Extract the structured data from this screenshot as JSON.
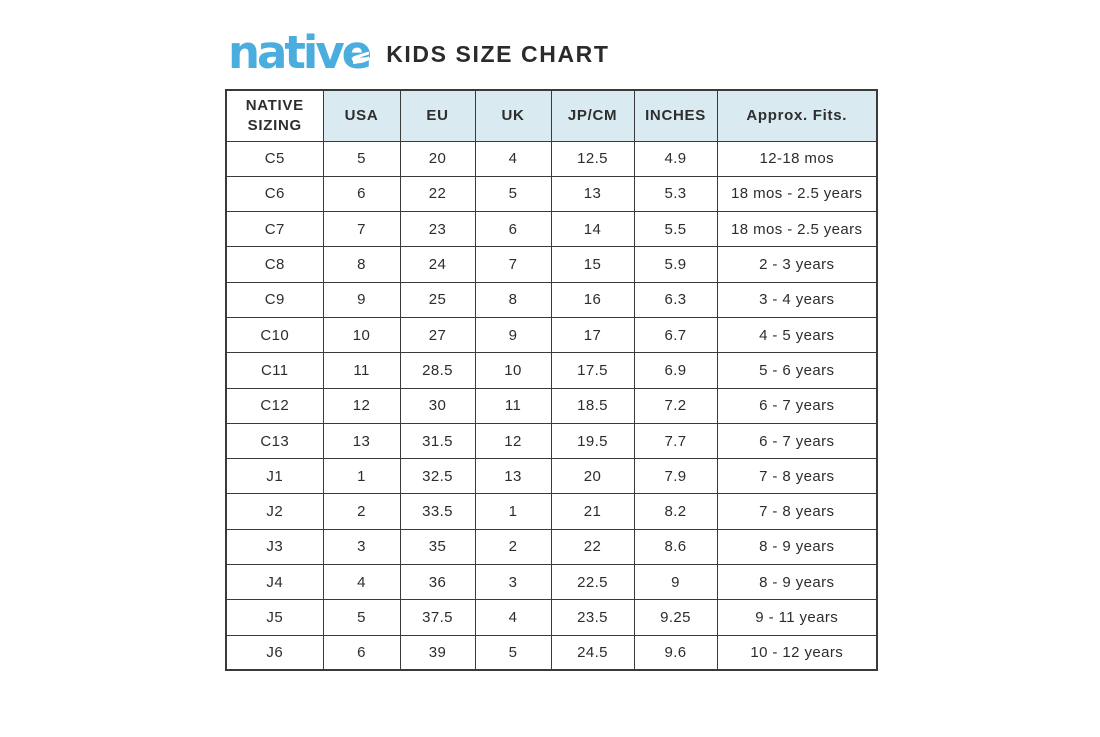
{
  "header": {
    "logo_text": "native",
    "title": "KIDS SIZE CHART"
  },
  "colors": {
    "logo_blue": "#4badde",
    "header_bg": "#d9eaf1",
    "border": "#3a3a3a",
    "text": "#2d2d2d"
  },
  "chart_data": {
    "type": "table",
    "title": "native KIDS SIZE CHART",
    "columns": [
      "NATIVE SIZING",
      "USA",
      "EU",
      "UK",
      "JP/CM",
      "INCHES",
      "Approx. Fits."
    ],
    "rows": [
      [
        "C5",
        "5",
        "20",
        "4",
        "12.5",
        "4.9",
        "12-18 mos"
      ],
      [
        "C6",
        "6",
        "22",
        "5",
        "13",
        "5.3",
        "18 mos - 2.5 years"
      ],
      [
        "C7",
        "7",
        "23",
        "6",
        "14",
        "5.5",
        "18 mos - 2.5 years"
      ],
      [
        "C8",
        "8",
        "24",
        "7",
        "15",
        "5.9",
        "2 - 3 years"
      ],
      [
        "C9",
        "9",
        "25",
        "8",
        "16",
        "6.3",
        "3 - 4 years"
      ],
      [
        "C10",
        "10",
        "27",
        "9",
        "17",
        "6.7",
        "4 - 5 years"
      ],
      [
        "C11",
        "11",
        "28.5",
        "10",
        "17.5",
        "6.9",
        "5 - 6 years"
      ],
      [
        "C12",
        "12",
        "30",
        "11",
        "18.5",
        "7.2",
        "6 - 7 years"
      ],
      [
        "C13",
        "13",
        "31.5",
        "12",
        "19.5",
        "7.7",
        "6 - 7 years"
      ],
      [
        "J1",
        "1",
        "32.5",
        "13",
        "20",
        "7.9",
        "7 - 8 years"
      ],
      [
        "J2",
        "2",
        "33.5",
        "1",
        "21",
        "8.2",
        "7 - 8 years"
      ],
      [
        "J3",
        "3",
        "35",
        "2",
        "22",
        "8.6",
        "8 - 9 years"
      ],
      [
        "J4",
        "4",
        "36",
        "3",
        "22.5",
        "9",
        "8 - 9 years"
      ],
      [
        "J5",
        "5",
        "37.5",
        "4",
        "23.5",
        "9.25",
        "9 - 11 years"
      ],
      [
        "J6",
        "6",
        "39",
        "5",
        "24.5",
        "9.6",
        "10 - 12 years"
      ]
    ]
  }
}
